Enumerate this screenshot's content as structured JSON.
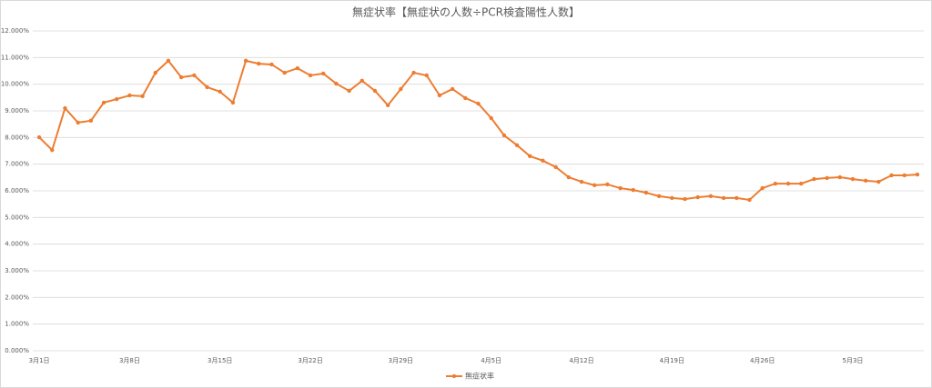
{
  "chart_data": {
    "type": "line",
    "title": "無症状率【無症状の人数÷PCR検査陽性人数】",
    "categories": [
      "3月1日",
      null,
      null,
      null,
      null,
      null,
      null,
      "3月8日",
      null,
      null,
      null,
      null,
      null,
      null,
      "3月15日",
      null,
      null,
      null,
      null,
      null,
      null,
      "3月22日",
      null,
      null,
      null,
      null,
      null,
      null,
      "3月29日",
      null,
      null,
      null,
      null,
      null,
      null,
      "4月5日",
      null,
      null,
      null,
      null,
      null,
      null,
      "4月12日",
      null,
      null,
      null,
      null,
      null,
      null,
      "4月19日",
      null,
      null,
      null,
      null,
      null,
      null,
      "4月26日",
      null,
      null,
      null,
      null,
      null,
      null,
      "5月3日",
      null,
      null,
      null,
      null,
      null
    ],
    "series": [
      {
        "name": "無症状率",
        "color": "#ed7d31",
        "values": [
          8.01,
          7.53,
          9.1,
          8.56,
          8.63,
          9.31,
          9.44,
          9.58,
          9.55,
          10.43,
          10.88,
          10.26,
          10.33,
          9.89,
          9.72,
          9.31,
          10.88,
          10.77,
          10.74,
          10.43,
          10.6,
          10.33,
          10.4,
          10.02,
          9.75,
          10.13,
          9.75,
          9.21,
          9.82,
          10.43,
          10.33,
          9.58,
          9.82,
          9.48,
          9.27,
          8.73,
          8.08,
          7.71,
          7.3,
          7.13,
          6.89,
          6.51,
          6.34,
          6.21,
          6.24,
          6.1,
          6.03,
          5.93,
          5.8,
          5.73,
          5.69,
          5.76,
          5.8,
          5.73,
          5.73,
          5.66,
          6.1,
          6.27,
          6.27,
          6.27,
          6.44,
          6.48,
          6.51,
          6.44,
          6.38,
          6.34,
          6.58,
          6.58,
          6.61
        ]
      }
    ],
    "ylim": [
      0,
      12
    ],
    "yticks": [
      {
        "value": 0,
        "label": "0.000%"
      },
      {
        "value": 1,
        "label": "1.000%"
      },
      {
        "value": 2,
        "label": "2.000%"
      },
      {
        "value": 3,
        "label": "3.000%"
      },
      {
        "value": 4,
        "label": "4.000%"
      },
      {
        "value": 5,
        "label": "5.000%"
      },
      {
        "value": 6,
        "label": "6.000%"
      },
      {
        "value": 7,
        "label": "7.000%"
      },
      {
        "value": 8,
        "label": "8.000%"
      },
      {
        "value": 9,
        "label": "9.000%"
      },
      {
        "value": 10,
        "label": "10.000%"
      },
      {
        "value": 11,
        "label": "11.000%"
      },
      {
        "value": 12,
        "label": "12.000%"
      }
    ],
    "grid": true,
    "legend": "bottom"
  }
}
